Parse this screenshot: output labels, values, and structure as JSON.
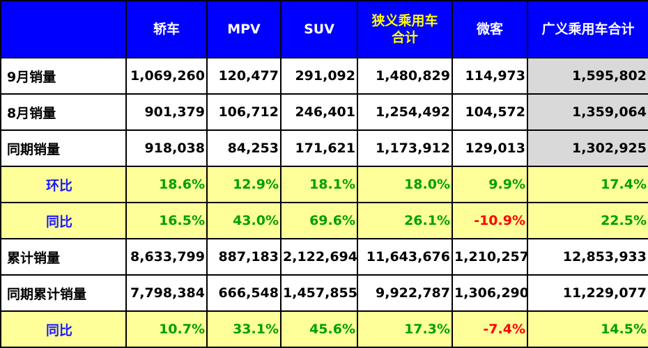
{
  "header": {
    "corner": "",
    "columns": [
      "轿车",
      "MPV",
      "SUV",
      "狭义乘用车\n合计",
      "微客",
      "广义乘用车合计"
    ]
  },
  "rows": [
    {
      "label": "9月销量",
      "values": [
        "1,069,260",
        "120,477",
        "291,092",
        "1,480,829",
        "114,973",
        "1,595,802"
      ]
    },
    {
      "label": "8月销量",
      "values": [
        "901,379",
        "106,712",
        "246,401",
        "1,254,492",
        "104,572",
        "1,359,064"
      ]
    },
    {
      "label": "同期销量",
      "values": [
        "918,038",
        "84,253",
        "171,621",
        "1,173,912",
        "129,013",
        "1,302,925"
      ]
    },
    {
      "label": "环比",
      "values": [
        "18.6%",
        "12.9%",
        "18.1%",
        "18.0%",
        "9.9%",
        "17.4%"
      ]
    },
    {
      "label": "同比",
      "values": [
        "16.5%",
        "43.0%",
        "69.6%",
        "26.1%",
        "-10.9%",
        "22.5%"
      ]
    },
    {
      "label": "累计销量",
      "values": [
        "8,633,799",
        "887,183",
        "2,122,694",
        "11,643,676",
        "1,210,257",
        "12,853,933"
      ]
    },
    {
      "label": "同期累计销量",
      "values": [
        "7,798,384",
        "666,548",
        "1,457,855",
        "9,922,787",
        "1,306,290",
        "11,229,077"
      ]
    },
    {
      "label": "同比",
      "values": [
        "10.7%",
        "33.1%",
        "45.6%",
        "17.3%",
        "-7.4%",
        "14.5%"
      ]
    }
  ],
  "colors": {
    "header_bg": "#0000ff",
    "header_text": "#ffffff",
    "header_highlight_text": "#ffff00",
    "ratio_row_bg": "#ffff99",
    "ratio_label_text": "#1a1aff",
    "positive_pct": "#00a000",
    "negative_pct": "#ff0000",
    "total_column_bg": "#d9d9d9"
  }
}
